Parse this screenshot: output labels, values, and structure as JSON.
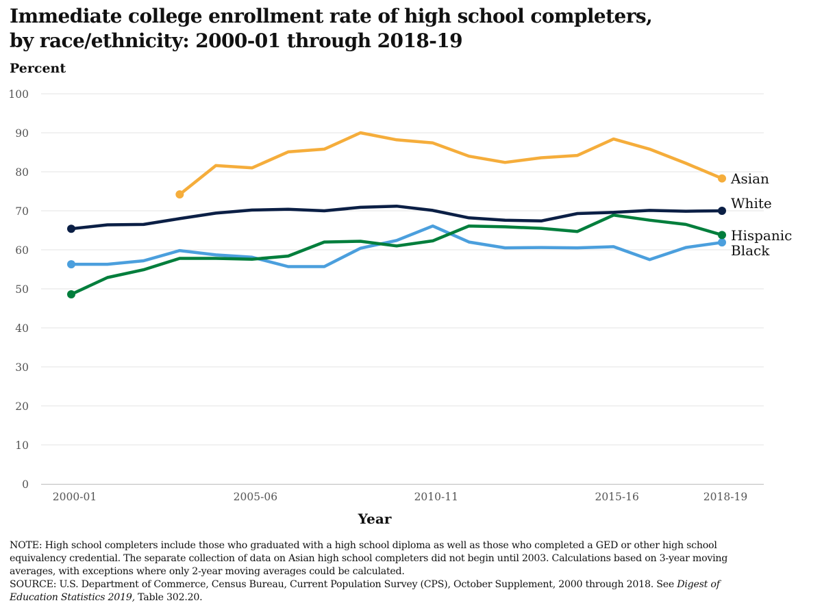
{
  "title": {
    "line1": "Immediate college enrollment rate of high school completers,",
    "line2": "by race/ethnicity: 2000-01 through 2018-19"
  },
  "chart_data": {
    "type": "line",
    "ylabel": "Percent",
    "xlabel": "Year",
    "ylim": [
      0,
      100
    ],
    "yticks": [
      0,
      10,
      20,
      30,
      40,
      50,
      60,
      70,
      80,
      90,
      100
    ],
    "x": [
      "2000-01",
      "2001-02",
      "2002-03",
      "2003-04",
      "2004-05",
      "2005-06",
      "2006-07",
      "2007-08",
      "2008-09",
      "2009-10",
      "2010-11",
      "2011-12",
      "2012-13",
      "2013-14",
      "2014-15",
      "2015-16",
      "2016-17",
      "2017-18",
      "2018-19"
    ],
    "xtick_labels": [
      "2000-01",
      "2005-06",
      "2010-11",
      "2015-16",
      "2018-19"
    ],
    "grid": true,
    "series": [
      {
        "name": "Asian",
        "color": "#f5ad3b",
        "values": [
          null,
          null,
          null,
          74.2,
          81.6,
          81.0,
          85.1,
          85.8,
          90.0,
          88.2,
          87.4,
          84.0,
          82.4,
          83.6,
          84.2,
          88.4,
          85.8,
          82.2,
          78.3
        ]
      },
      {
        "name": "White",
        "color": "#0b1f45",
        "values": [
          65.4,
          66.4,
          66.5,
          68.0,
          69.4,
          70.2,
          70.4,
          70.0,
          70.9,
          71.2,
          70.1,
          68.2,
          67.6,
          67.4,
          69.3,
          69.6,
          70.1,
          69.9,
          70.0
        ]
      },
      {
        "name": "Hispanic",
        "color": "#027e3c",
        "values": [
          48.6,
          52.9,
          54.9,
          57.8,
          57.8,
          57.6,
          58.4,
          62.0,
          62.2,
          61.0,
          62.3,
          66.1,
          65.9,
          65.5,
          64.7,
          68.9,
          67.6,
          66.5,
          63.8
        ]
      },
      {
        "name": "Black",
        "color": "#4b9fdd",
        "values": [
          56.3,
          56.3,
          57.2,
          59.8,
          58.7,
          58.1,
          55.7,
          55.7,
          60.4,
          62.4,
          66.1,
          62.0,
          60.5,
          60.6,
          60.5,
          60.8,
          57.5,
          60.6,
          61.9
        ]
      }
    ]
  },
  "notes": {
    "note_line1": "NOTE: High school completers include those who graduated with a high school diploma as well as those who completed a GED or other high school",
    "note_line2": "equivalency credential. The separate collection of data on Asian high school completers did not begin until 2003. Calculations based on 3-year moving",
    "note_line3": "averages, with exceptions where only 2-year moving averages could be calculated.",
    "source_line1_prefix": "SOURCE: U.S. Department of Commerce, Census Bureau, Current Population Survey (CPS), October Supplement, 2000 through 2018. See ",
    "source_line1_italic": "Digest of",
    "source_line2_italic": "Education Statistics 2019,",
    "source_line2_suffix": " Table 302.20."
  }
}
